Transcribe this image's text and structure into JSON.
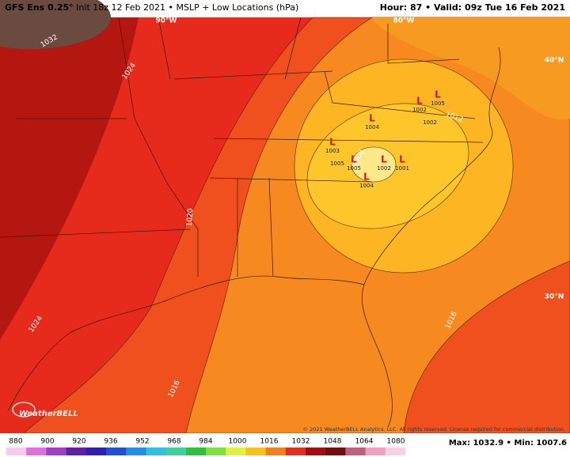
{
  "header": {
    "model": "GFS Ens 0.25°",
    "init": "Init 18z 12 Feb 2021",
    "product": "MSLP + Low Locations (hPa)",
    "hour_label": "Hour:",
    "hour": "87",
    "valid_label": "Valid:",
    "valid": "09z Tue 16 Feb 2021"
  },
  "geo_labels": [
    "90°W",
    "80°W",
    "40°N",
    "30°N"
  ],
  "contour_labels": [
    "1032",
    "1024",
    "1020",
    "1024",
    "1016",
    "1016",
    "1012",
    "1008"
  ],
  "lows": [
    {
      "marker": "L",
      "pressure": "1004"
    },
    {
      "marker": "L",
      "pressure": "1002"
    },
    {
      "marker": "L",
      "pressure": "1005"
    },
    {
      "marker": "L",
      "pressure": "1003"
    },
    {
      "marker": "L",
      "pressure": "1005"
    },
    {
      "marker": "L",
      "pressure": "1002"
    },
    {
      "marker": "L",
      "pressure": "1001"
    },
    {
      "marker": "L",
      "pressure": "1004"
    }
  ],
  "extra_pressure_labels": [
    "1002",
    "1005"
  ],
  "logo": "WeatherBELL",
  "copyright": "© 2021 WeatherBELL Analytics, LLC. All rights reserved. License required for commercial distribution.",
  "stats": {
    "max_label": "Max:",
    "max": "1032.9",
    "min_label": "Min:",
    "min": "1007.6"
  },
  "colorbar_ticks": [
    "880",
    "900",
    "920",
    "936",
    "952",
    "968",
    "984",
    "1000",
    "1016",
    "1032",
    "1048",
    "1064",
    "1080"
  ]
}
